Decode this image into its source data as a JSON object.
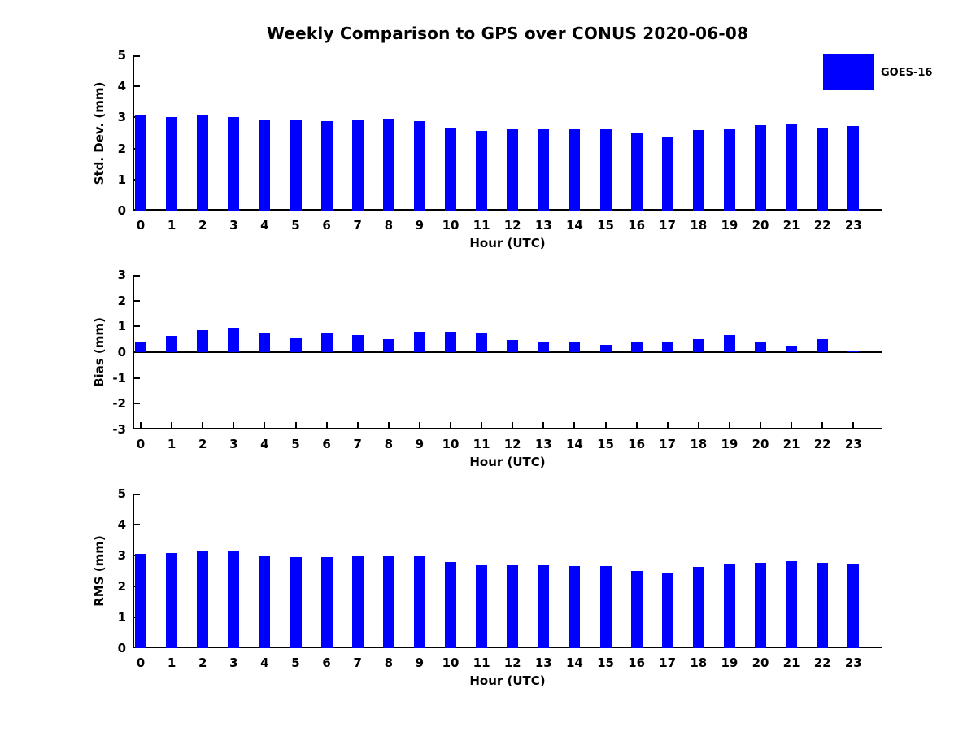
{
  "title": "Weekly Comparison to GPS over CONUS 2020-06-08",
  "legend": {
    "label": "GOES-16",
    "color": "#0000FF",
    "position": "upper right outside plot"
  },
  "colors": {
    "bar": "#0000FF",
    "axis": "#000000",
    "text": "#000000",
    "background": "#ffffff"
  },
  "chart_data": [
    {
      "type": "bar",
      "title": "Weekly Comparison to GPS over CONUS 2020-06-08",
      "series_name": "GOES-16",
      "categories": [
        "0",
        "1",
        "2",
        "3",
        "4",
        "5",
        "6",
        "7",
        "8",
        "9",
        "10",
        "11",
        "12",
        "13",
        "14",
        "15",
        "16",
        "17",
        "18",
        "19",
        "20",
        "21",
        "22",
        "23"
      ],
      "values": [
        3.05,
        3.02,
        3.05,
        3.01,
        2.92,
        2.92,
        2.87,
        2.92,
        2.96,
        2.87,
        2.66,
        2.57,
        2.62,
        2.65,
        2.62,
        2.62,
        2.48,
        2.39,
        2.58,
        2.62,
        2.74,
        2.81,
        2.68,
        2.72
      ],
      "xlabel": "Hour (UTC)",
      "ylabel": "Std. Dev. (mm)",
      "ylim": [
        0,
        5
      ],
      "yticks": [
        0,
        1,
        2,
        3,
        4,
        5
      ],
      "grid": false
    },
    {
      "type": "bar",
      "title": "",
      "series_name": "GOES-16",
      "categories": [
        "0",
        "1",
        "2",
        "3",
        "4",
        "5",
        "6",
        "7",
        "8",
        "9",
        "10",
        "11",
        "12",
        "13",
        "14",
        "15",
        "16",
        "17",
        "18",
        "19",
        "20",
        "21",
        "22",
        "23"
      ],
      "values": [
        0.37,
        0.62,
        0.86,
        0.95,
        0.76,
        0.58,
        0.72,
        0.67,
        0.52,
        0.79,
        0.79,
        0.73,
        0.48,
        0.37,
        0.37,
        0.3,
        0.37,
        0.4,
        0.52,
        0.66,
        0.4,
        0.25,
        0.51,
        0.04
      ],
      "xlabel": "Hour (UTC)",
      "ylabel": "Bias (mm)",
      "ylim": [
        -3,
        3
      ],
      "yticks": [
        -3,
        -2,
        -1,
        0,
        1,
        2,
        3
      ],
      "grid": false
    },
    {
      "type": "bar",
      "title": "",
      "series_name": "GOES-16",
      "categories": [
        "0",
        "1",
        "2",
        "3",
        "4",
        "5",
        "6",
        "7",
        "8",
        "9",
        "10",
        "11",
        "12",
        "13",
        "14",
        "15",
        "16",
        "17",
        "18",
        "19",
        "20",
        "21",
        "22",
        "23"
      ],
      "values": [
        3.04,
        3.07,
        3.13,
        3.13,
        3.01,
        2.96,
        2.96,
        2.99,
        2.99,
        2.99,
        2.79,
        2.68,
        2.68,
        2.69,
        2.67,
        2.66,
        2.5,
        2.41,
        2.62,
        2.73,
        2.76,
        2.81,
        2.76,
        2.73
      ],
      "xlabel": "Hour (UTC)",
      "ylabel": "RMS (mm)",
      "ylim": [
        0,
        5
      ],
      "yticks": [
        0,
        1,
        2,
        3,
        4,
        5
      ],
      "grid": false
    }
  ]
}
